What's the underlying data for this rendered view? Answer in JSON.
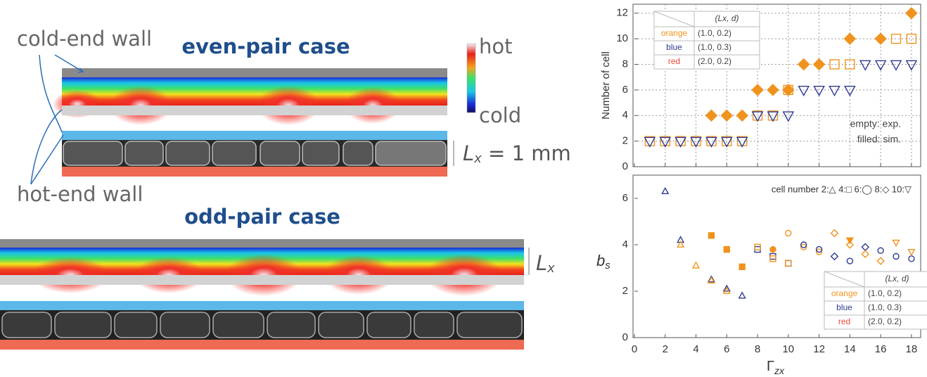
{
  "diagram": {
    "cold_end_wall": "cold-end wall",
    "hot_end_wall": "hot-end wall",
    "even_pair_title": "even-pair case",
    "odd_pair_title": "odd-pair case",
    "colorbar_hot": "hot",
    "colorbar_cold": "cold",
    "lx_even": {
      "main": "L",
      "sub": "x",
      "rest": " = 1 mm"
    },
    "lx_odd": {
      "main": "L",
      "sub": "x"
    }
  },
  "chart_data": [
    {
      "type": "scatter",
      "ylabel": "Number of cell",
      "xlim": [
        0,
        18.6
      ],
      "ylim": [
        0,
        12.7
      ],
      "xticks": [
        0,
        2,
        4,
        6,
        8,
        10,
        12,
        14,
        16,
        18
      ],
      "yticks": [
        0,
        2,
        4,
        6,
        8,
        10,
        12
      ],
      "show_xtick_labels": false,
      "grid": true,
      "annotations": [
        "empty: exp.",
        "filled: sim."
      ],
      "legend_table": {
        "header": "(Lx, d)",
        "rows": [
          [
            "orange",
            "(1.0, 0.2)"
          ],
          [
            "blue",
            "(1.0, 0.3)"
          ],
          [
            "red",
            "(2.0, 0.2)"
          ]
        ],
        "colors": [
          "#f0931e",
          "#2e3b92",
          "#e8483a"
        ]
      },
      "series": [
        {
          "color": "#f0931e",
          "marker": "diamond",
          "filled": true,
          "x": [
            5,
            6,
            7,
            8,
            9,
            10,
            11,
            12,
            14,
            16,
            18
          ],
          "values": [
            4,
            4,
            4,
            6,
            6,
            6,
            8,
            8,
            10,
            10,
            12
          ]
        },
        {
          "color": "#f0931e",
          "marker": "square",
          "filled": false,
          "x": [
            1,
            2,
            3,
            4,
            5,
            6,
            7,
            8,
            9,
            10,
            13,
            14,
            17,
            18
          ],
          "values": [
            2,
            2,
            2,
            2,
            2,
            2,
            2,
            4,
            4,
            6,
            8,
            8,
            10,
            10
          ]
        },
        {
          "color": "#2e3b92",
          "marker": "triangle-down",
          "filled": false,
          "x": [
            1,
            2,
            3,
            4,
            5,
            6,
            7,
            8,
            9,
            10,
            11,
            12,
            13,
            14,
            15,
            16,
            17,
            18
          ],
          "values": [
            2,
            2,
            2,
            2,
            2,
            2,
            2,
            4,
            4,
            4,
            6,
            6,
            6,
            6,
            8,
            8,
            8,
            8
          ]
        }
      ]
    },
    {
      "type": "scatter",
      "xlabel": {
        "main": "Γ",
        "sub": "zx"
      },
      "ylabel": {
        "main": "b",
        "sub": "s"
      },
      "xlim": [
        0,
        18.6
      ],
      "ylim": [
        0,
        7
      ],
      "xticks": [
        0,
        2,
        4,
        6,
        8,
        10,
        12,
        14,
        16,
        18
      ],
      "yticks": [
        0,
        2,
        4,
        6
      ],
      "show_xtick_labels": true,
      "grid": false,
      "annotations": [
        "cell number 2:△ 4:□ 6:◯ 8:◇ 10:▽"
      ],
      "legend_table": {
        "header": "(Lx, d)",
        "rows": [
          [
            "orange",
            "(1.0, 0.2)"
          ],
          [
            "blue",
            "(1.0, 0.3)"
          ],
          [
            "red",
            "(2.0, 0.2)"
          ]
        ],
        "colors": [
          "#f0931e",
          "#2e3b92",
          "#e8483a"
        ]
      },
      "series": [
        {
          "color": "#2e3b92",
          "marker": "triangle-up",
          "filled": false,
          "x": [
            2,
            3,
            5,
            6,
            7
          ],
          "values": [
            6.3,
            4.2,
            2.5,
            2.1,
            1.8
          ]
        },
        {
          "color": "#f0931e",
          "marker": "triangle-up",
          "filled": false,
          "x": [
            3,
            4,
            5,
            6
          ],
          "values": [
            4.0,
            3.1,
            2.45,
            2.0
          ]
        },
        {
          "color": "#f0931e",
          "marker": "square",
          "filled": true,
          "x": [
            5,
            6,
            7
          ],
          "values": [
            4.4,
            3.8,
            3.05
          ]
        },
        {
          "color": "#f0931e",
          "marker": "circle",
          "filled": true,
          "x": [
            9
          ],
          "values": [
            3.8
          ]
        },
        {
          "color": "#2e3b92",
          "marker": "square",
          "filled": false,
          "x": [
            8,
            9,
            10
          ],
          "values": [
            3.8,
            3.5,
            3.2
          ]
        },
        {
          "color": "#f0931e",
          "marker": "square",
          "filled": false,
          "x": [
            8,
            9,
            10
          ],
          "values": [
            3.9,
            3.4,
            3.2
          ]
        },
        {
          "color": "#f0931e",
          "marker": "circle",
          "filled": false,
          "x": [
            10,
            11,
            12
          ],
          "values": [
            4.5,
            3.9,
            3.7
          ]
        },
        {
          "color": "#2e3b92",
          "marker": "circle",
          "filled": false,
          "x": [
            11,
            12,
            14,
            16,
            17,
            18
          ],
          "values": [
            4.0,
            3.8,
            3.3,
            3.75,
            3.5,
            3.4
          ]
        },
        {
          "color": "#2e3b92",
          "marker": "diamond",
          "filled": false,
          "x": [
            13,
            15
          ],
          "values": [
            3.5,
            3.9
          ]
        },
        {
          "color": "#f0931e",
          "marker": "diamond",
          "filled": false,
          "x": [
            13,
            14,
            15,
            16
          ],
          "values": [
            4.5,
            4.0,
            3.6,
            3.3
          ]
        },
        {
          "color": "#f0931e",
          "marker": "triangle-down",
          "filled": false,
          "x": [
            17,
            18
          ],
          "values": [
            4.1,
            3.7
          ]
        },
        {
          "color": "#f0931e",
          "marker": "triangle-down",
          "filled": true,
          "x": [
            14
          ],
          "values": [
            4.2
          ]
        }
      ]
    }
  ]
}
